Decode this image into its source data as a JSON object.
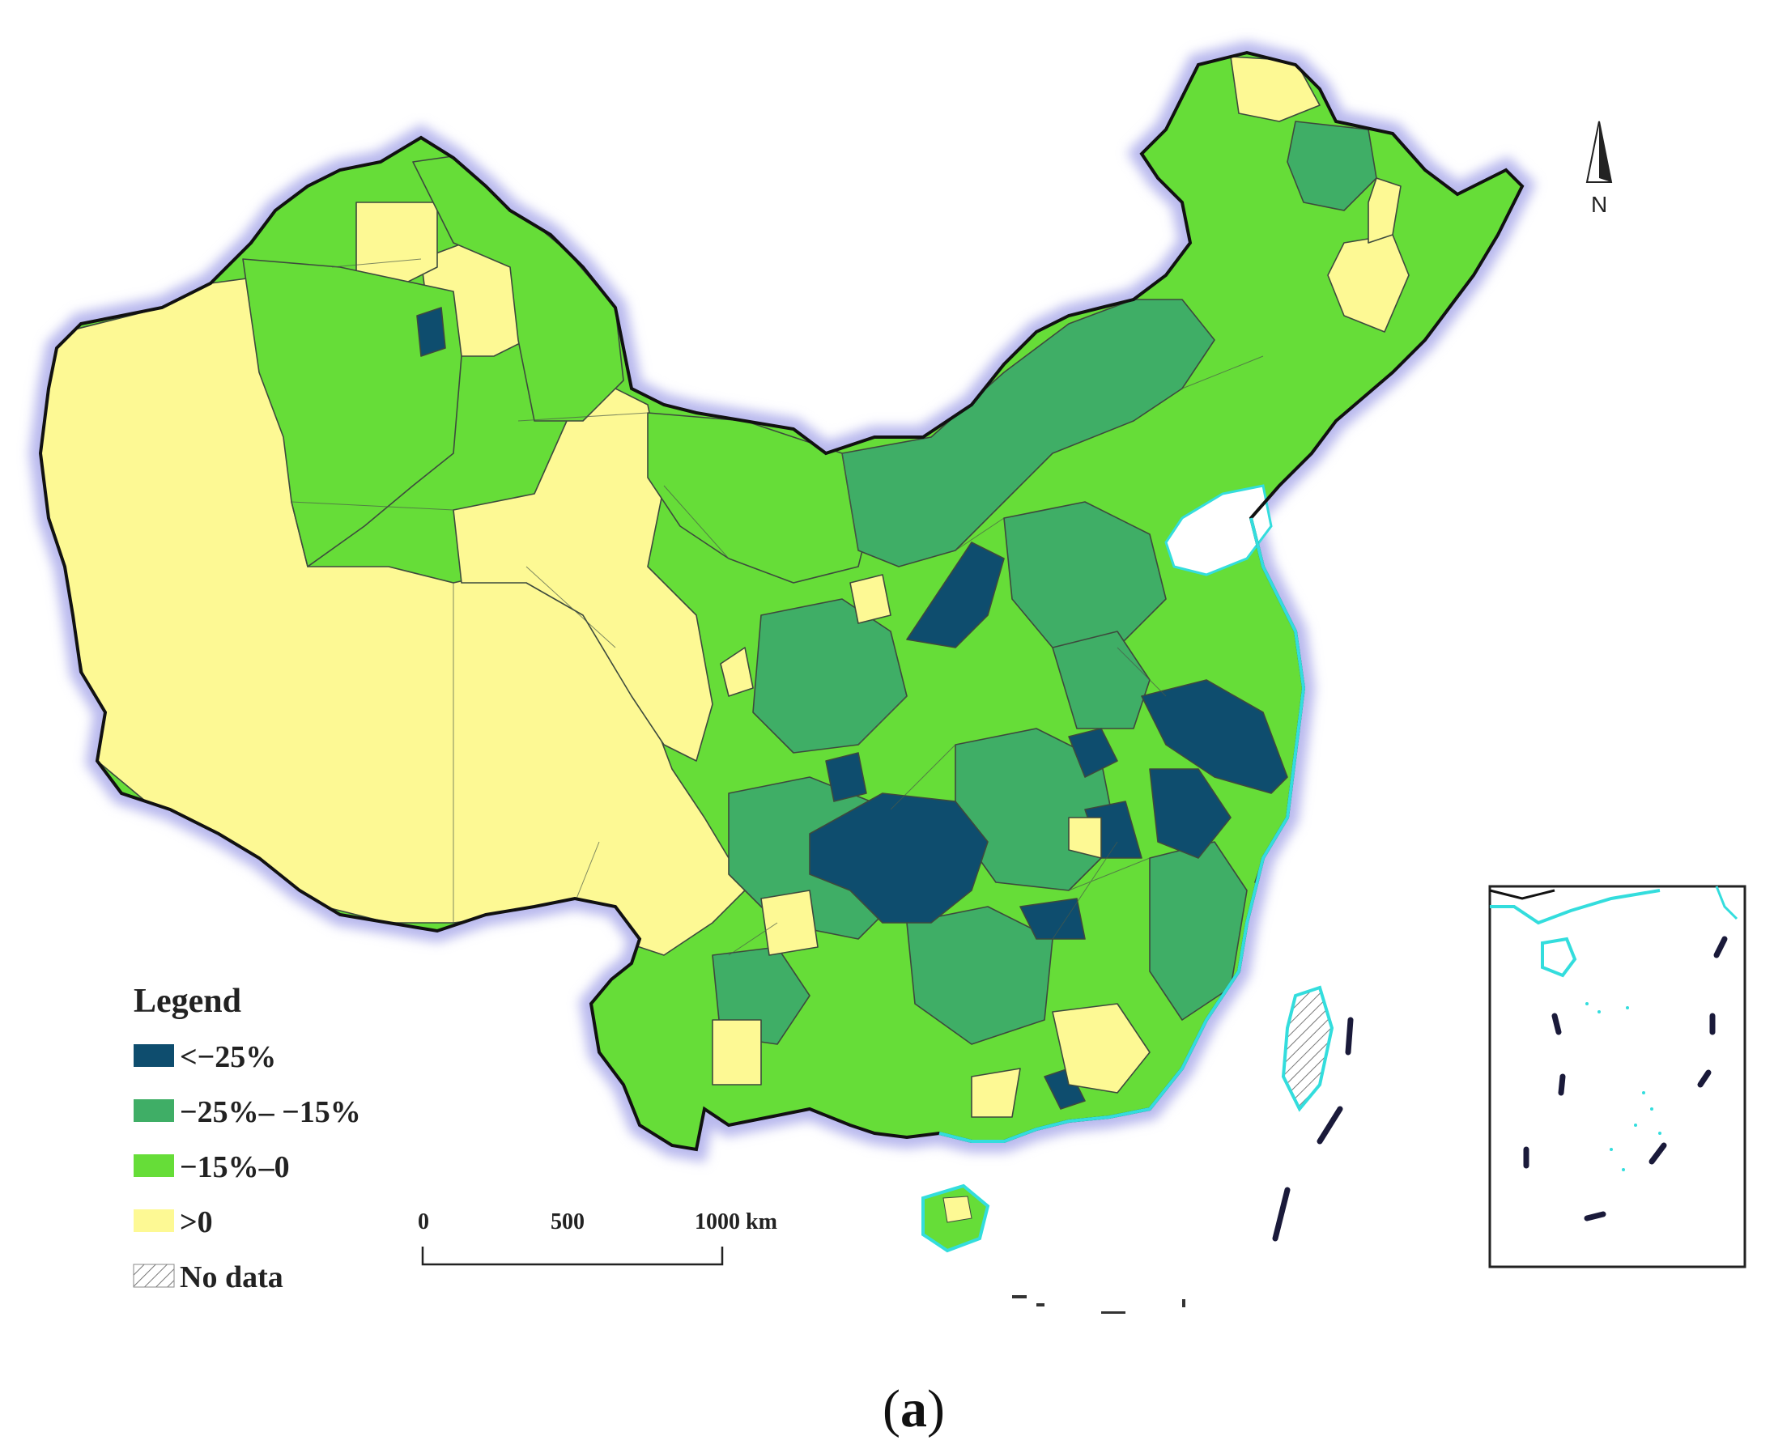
{
  "colors": {
    "lt_neg25": "#0e4d6e",
    "neg25_neg15": "#3fae66",
    "neg15_0": "#66dd38",
    "gt_0": "#fdf994",
    "no_data": "#ffffff",
    "border": "#111111",
    "border_glow": "#b9b9ee",
    "coast": "#33dddd"
  },
  "legend": {
    "title": "Legend",
    "items": [
      {
        "key": "lt_neg25",
        "label": "<−25%"
      },
      {
        "key": "neg25_neg15",
        "label": "−25%– −15%"
      },
      {
        "key": "neg15_0",
        "label": "−15%–0"
      },
      {
        "key": "gt_0",
        "label": ">0"
      },
      {
        "key": "no_data",
        "label": "No data"
      }
    ]
  },
  "scale_bar": {
    "ticks": [
      "0",
      "500",
      "1000 km"
    ]
  },
  "north_arrow": {
    "label": "N"
  },
  "inset_map": {
    "icon": "south-china-sea-inset"
  },
  "caption": {
    "open": "(",
    "letter": "a",
    "close": ")"
  }
}
